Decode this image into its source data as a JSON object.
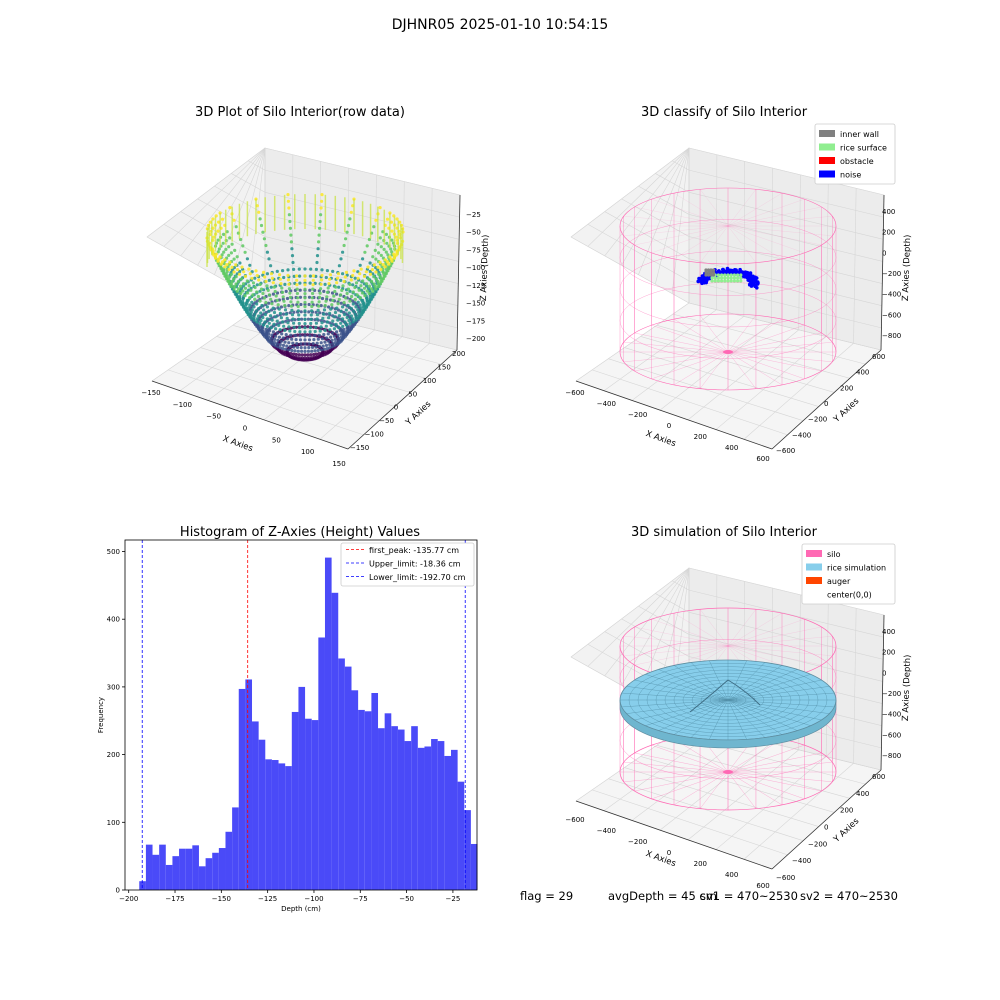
{
  "figure": {
    "suptitle": "DJHNR05 2025-01-10 10:54:15"
  },
  "footer": {
    "flag": "flag = 29",
    "avg_depth": "avgDepth = 45 cm",
    "sv1": "sv1 = 470~2530",
    "sv2": "sv2 = 470~2530"
  },
  "chart_data": [
    {
      "type": "scatter3d",
      "title": "3D Plot of Silo Interior(row data)",
      "xlabel": "X Axies",
      "ylabel": "Y Axies",
      "zlabel": "Z Axies (Depth)",
      "xticks": [
        "−150",
        "−100",
        "−50",
        "0",
        "50",
        "100",
        "150"
      ],
      "yticks": [
        "−150",
        "−100",
        "−50",
        "0",
        "50",
        "100",
        "150",
        "200"
      ],
      "zticks": [
        "−25",
        "−50",
        "−75",
        "−100",
        "−125",
        "−150",
        "−175",
        "−200"
      ],
      "xlim": [
        -150,
        150
      ],
      "ylim": [
        -150,
        200
      ],
      "zlim": [
        -210,
        -15
      ],
      "colormap": [
        "#440154",
        "#3b528b",
        "#21918c",
        "#5ec962",
        "#fde725"
      ]
    },
    {
      "type": "scatter3d",
      "title": "3D classify of Silo Interior",
      "xlabel": "X Axies",
      "ylabel": "Y Axies",
      "zlabel": "Z Axies (Depth)",
      "xticks": [
        "−600",
        "−400",
        "−200",
        "0",
        "200",
        "400",
        "600"
      ],
      "yticks": [
        "−600",
        "−400",
        "−200",
        "0",
        "200",
        "400",
        "600"
      ],
      "zticks": [
        "400",
        "200",
        "0",
        "−200",
        "−400",
        "−600",
        "−800"
      ],
      "legend": [
        {
          "label": "inner wall",
          "color": "#808080"
        },
        {
          "label": "rice surface",
          "color": "#90ee90"
        },
        {
          "label": "obstacle",
          "color": "#ff0000"
        },
        {
          "label": "noise",
          "color": "#0000ff"
        }
      ],
      "silo_color": "#ff69b4"
    },
    {
      "type": "histogram",
      "title": "Histogram of Z-Axies (Height) Values",
      "xlabel": "Depth (cm)",
      "ylabel": "Frequency",
      "bin_start": -194.3,
      "bin_width": 3.58,
      "counts": [
        13,
        67,
        52,
        67,
        37,
        50,
        61,
        61,
        66,
        35,
        47,
        55,
        62,
        86,
        122,
        297,
        311,
        249,
        222,
        193,
        192,
        187,
        183,
        263,
        300,
        253,
        251,
        373,
        491,
        439,
        342,
        330,
        295,
        266,
        264,
        291,
        239,
        261,
        242,
        237,
        220,
        242,
        210,
        212,
        223,
        220,
        198,
        207,
        160,
        118,
        68
      ],
      "bar_color": "#4a4af8",
      "xlim": [
        -202,
        -12
      ],
      "ylim": [
        0,
        517
      ],
      "xticks": [
        -200,
        -175,
        -150,
        -125,
        -100,
        -75,
        -50,
        -25
      ],
      "xtick_labels": [
        "−200",
        "−175",
        "−150",
        "−125",
        "−100",
        "−75",
        "−50",
        "−25"
      ],
      "yticks": [
        0,
        100,
        200,
        300,
        400,
        500
      ],
      "ytick_labels": [
        "0",
        "100",
        "200",
        "300",
        "400",
        "500"
      ],
      "vlines": [
        {
          "label": "first_peak: -135.77 cm",
          "value": -135.77,
          "color": "#ff0000"
        },
        {
          "label": "Upper_limit: -18.36 cm",
          "value": -18.36,
          "color": "#0000ff"
        },
        {
          "label": "Lower_limit: -192.70 cm",
          "value": -192.7,
          "color": "#0000ff"
        }
      ]
    },
    {
      "type": "surface3d",
      "title": "3D simulation of Silo Interior",
      "xlabel": "X Axies",
      "ylabel": "Y Axies",
      "zlabel": "Z Axies (Depth)",
      "xticks": [
        "−600",
        "−400",
        "−200",
        "0",
        "200",
        "400",
        "600"
      ],
      "yticks": [
        "−600",
        "−400",
        "−200",
        "0",
        "200",
        "400",
        "600"
      ],
      "zticks": [
        "400",
        "200",
        "0",
        "−200",
        "−400",
        "−600",
        "−800"
      ],
      "legend": [
        {
          "label": "silo",
          "color": "#ff69b4"
        },
        {
          "label": "rice simulation",
          "color": "#87ceeb"
        },
        {
          "label": "auger",
          "color": "#ff4500"
        },
        {
          "label": "center(0,0)",
          "color": "#ffffff"
        }
      ]
    }
  ]
}
